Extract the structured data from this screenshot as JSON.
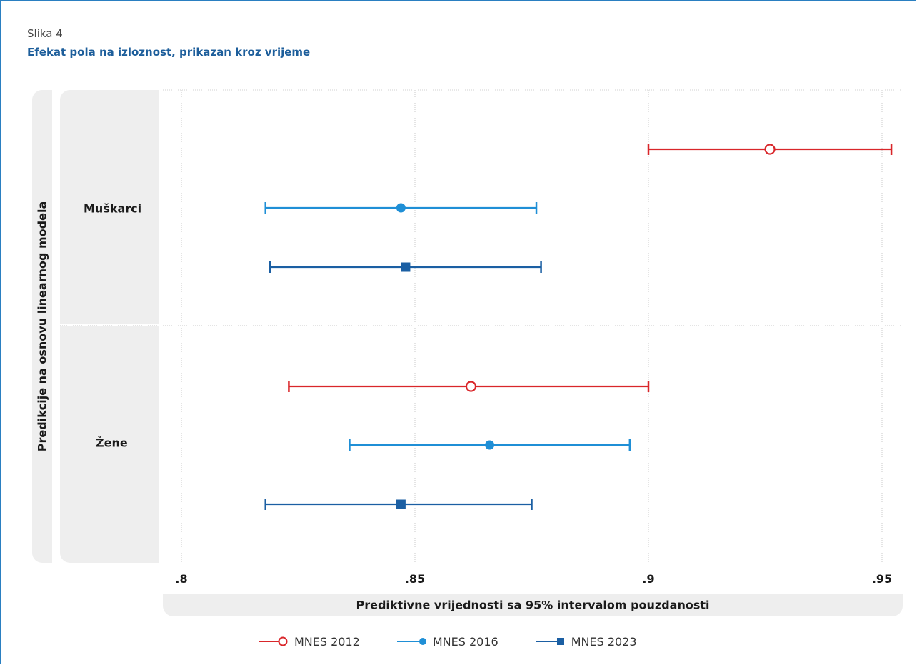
{
  "figure": {
    "label": "Slika 4",
    "title": "Efekat pola na izloznost, prikazan kroz vrijeme"
  },
  "chart_data": {
    "type": "scatter",
    "subtype": "point-with-error-bars",
    "ylabel": "Predikcije na osnovu linearnog modela",
    "xlabel": "Prediktivne vrijednosti sa 95% intervalom pouzdanosti",
    "xlim": [
      0.78,
      0.954
    ],
    "xticks": [
      0.8,
      0.85,
      0.9,
      0.95
    ],
    "xtick_labels": [
      ".8",
      ".85",
      ".9",
      ".95"
    ],
    "grid": true,
    "legend_position": "bottom",
    "groups": [
      "Muškarci",
      "Žene"
    ],
    "series": [
      {
        "name": "MNES 2012",
        "marker": "hollow-circle",
        "color": "#d9262a",
        "points": [
          {
            "group": "Muškarci",
            "estimate": 0.926,
            "lower": 0.9,
            "upper": 0.952
          },
          {
            "group": "Žene",
            "estimate": 0.862,
            "lower": 0.823,
            "upper": 0.9
          }
        ]
      },
      {
        "name": "MNES 2016",
        "marker": "filled-circle",
        "color": "#1f8fd6",
        "points": [
          {
            "group": "Muškarci",
            "estimate": 0.847,
            "lower": 0.818,
            "upper": 0.876
          },
          {
            "group": "Žene",
            "estimate": 0.866,
            "lower": 0.836,
            "upper": 0.896
          }
        ]
      },
      {
        "name": "MNES 2023",
        "marker": "filled-square",
        "color": "#1b5fa3",
        "points": [
          {
            "group": "Muškarci",
            "estimate": 0.848,
            "lower": 0.819,
            "upper": 0.877
          },
          {
            "group": "Žene",
            "estimate": 0.847,
            "lower": 0.818,
            "upper": 0.875
          }
        ]
      }
    ]
  }
}
